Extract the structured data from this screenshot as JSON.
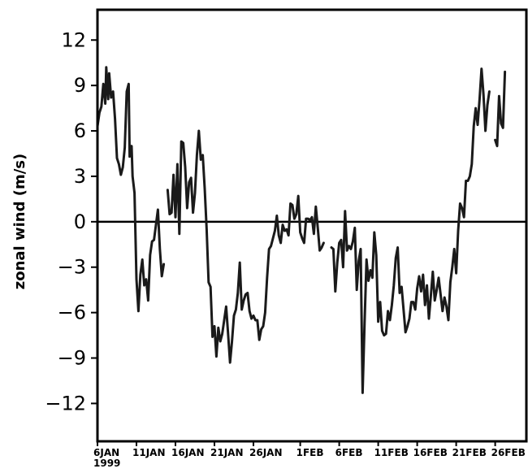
{
  "chart_data": {
    "type": "line",
    "title": "",
    "xlabel": "",
    "ylabel": "zonal wind (m/s)",
    "ylim": [
      -14.5,
      14
    ],
    "yticks": [
      12,
      9,
      6,
      3,
      0,
      -3,
      -6,
      -9,
      -12
    ],
    "ytick_labels": [
      "12",
      "9",
      "6",
      "3",
      "0",
      "−3",
      "−6",
      "−9",
      "−12"
    ],
    "xlim": [
      "1999-01-06",
      "1999-03-02"
    ],
    "xticks": [
      {
        "date": "1999-01-06",
        "label": "6JAN"
      },
      {
        "date": "1999-01-11",
        "label": "11JAN"
      },
      {
        "date": "1999-01-16",
        "label": "16JAN"
      },
      {
        "date": "1999-01-21",
        "label": "21JAN"
      },
      {
        "date": "1999-01-26",
        "label": "26JAN"
      },
      {
        "date": "1999-02-01",
        "label": "1FEB"
      },
      {
        "date": "1999-02-06",
        "label": "6FEB"
      },
      {
        "date": "1999-02-11",
        "label": "11FEB"
      },
      {
        "date": "1999-02-16",
        "label": "16FEB"
      },
      {
        "date": "1999-02-21",
        "label": "21FEB"
      },
      {
        "date": "1999-02-26",
        "label": "26FEB"
      }
    ],
    "year_label": "1999",
    "zero_line": true,
    "grid": false,
    "line_color": "#1a1a1a",
    "series": [
      {
        "segments": [
          [
            [
              "1999-01-06 00:00",
              6.3
            ],
            [
              "1999-01-06 06:00",
              7.2
            ],
            [
              "1999-01-06 12:00",
              7.6
            ],
            [
              "1999-01-06 18:00",
              9.1
            ],
            [
              "1999-01-07 00:00",
              7.8
            ],
            [
              "1999-01-07 03:00",
              10.2
            ],
            [
              "1999-01-07 09:00",
              8.1
            ],
            [
              "1999-01-07 12:00",
              9.8
            ],
            [
              "1999-01-07 18:00",
              8.2
            ],
            [
              "1999-01-08 00:00",
              8.6
            ],
            [
              "1999-01-08 06:00",
              6.8
            ],
            [
              "1999-01-08 12:00",
              4.2
            ],
            [
              "1999-01-08 18:00",
              3.8
            ],
            [
              "1999-01-09 00:00",
              3.1
            ],
            [
              "1999-01-09 06:00",
              3.6
            ],
            [
              "1999-01-09 12:00",
              4.9
            ],
            [
              "1999-01-09 18:00",
              8.6
            ],
            [
              "1999-01-10 00:00",
              9.1
            ],
            [
              "1999-01-10 03:00",
              4.3
            ],
            [
              "1999-01-10 09:00",
              5.0
            ],
            [
              "1999-01-10 12:00",
              3.0
            ],
            [
              "1999-01-10 18:00",
              1.9
            ],
            [
              "1999-01-11 00:00",
              -3.8
            ],
            [
              "1999-01-11 06:00",
              -5.9
            ],
            [
              "1999-01-11 12:00",
              -3.5
            ],
            [
              "1999-01-11 18:00",
              -2.5
            ],
            [
              "1999-01-12 00:00",
              -4.2
            ],
            [
              "1999-01-12 06:00",
              -3.8
            ],
            [
              "1999-01-12 12:00",
              -5.2
            ],
            [
              "1999-01-12 18:00",
              -2.2
            ],
            [
              "1999-01-13 00:00",
              -1.3
            ],
            [
              "1999-01-13 06:00",
              -1.2
            ],
            [
              "1999-01-13 12:00",
              -0.2
            ],
            [
              "1999-01-13 18:00",
              0.8
            ],
            [
              "1999-01-14 00:00",
              -1.8
            ],
            [
              "1999-01-14 06:00",
              -3.6
            ],
            [
              "1999-01-14 12:00",
              -2.8
            ]
          ],
          [
            [
              "1999-01-15 00:00",
              2.1
            ],
            [
              "1999-01-15 06:00",
              0.5
            ],
            [
              "1999-01-15 12:00",
              0.6
            ],
            [
              "1999-01-15 18:00",
              3.1
            ],
            [
              "1999-01-16 00:00",
              0.3
            ],
            [
              "1999-01-16 06:00",
              3.8
            ],
            [
              "1999-01-16 12:00",
              -0.8
            ],
            [
              "1999-01-16 18:00",
              5.3
            ],
            [
              "1999-01-17 00:00",
              5.2
            ],
            [
              "1999-01-17 06:00",
              3.6
            ],
            [
              "1999-01-17 12:00",
              0.9
            ],
            [
              "1999-01-17 18:00",
              2.6
            ],
            [
              "1999-01-18 00:00",
              2.9
            ],
            [
              "1999-01-18 06:00",
              0.6
            ],
            [
              "1999-01-18 12:00",
              1.9
            ],
            [
              "1999-01-18 18:00",
              4.4
            ],
            [
              "1999-01-19 00:00",
              6.0
            ],
            [
              "1999-01-19 06:00",
              4.1
            ],
            [
              "1999-01-19 12:00",
              4.4
            ],
            [
              "1999-01-19 18:00",
              2.2
            ],
            [
              "1999-01-20 00:00",
              -0.5
            ],
            [
              "1999-01-20 06:00",
              -4.0
            ],
            [
              "1999-01-20 12:00",
              -4.3
            ],
            [
              "1999-01-20 18:00",
              -7.6
            ],
            [
              "1999-01-21 00:00",
              -6.9
            ],
            [
              "1999-01-21 06:00",
              -8.9
            ],
            [
              "1999-01-21 12:00",
              -7.0
            ],
            [
              "1999-01-21 18:00",
              -7.9
            ],
            [
              "1999-01-22 00:00",
              -7.4
            ],
            [
              "1999-01-22 06:00",
              -6.5
            ],
            [
              "1999-01-22 12:00",
              -5.6
            ],
            [
              "1999-01-22 18:00",
              -7.4
            ],
            [
              "1999-01-23 00:00",
              -9.3
            ],
            [
              "1999-01-23 06:00",
              -7.9
            ],
            [
              "1999-01-23 12:00",
              -6.2
            ],
            [
              "1999-01-23 18:00",
              -5.8
            ],
            [
              "1999-01-24 00:00",
              -4.7
            ],
            [
              "1999-01-24 06:00",
              -2.7
            ],
            [
              "1999-01-24 12:00",
              -5.8
            ],
            [
              "1999-01-24 18:00",
              -5.2
            ],
            [
              "1999-01-25 00:00",
              -4.8
            ],
            [
              "1999-01-25 06:00",
              -4.7
            ],
            [
              "1999-01-25 12:00",
              -5.9
            ],
            [
              "1999-01-25 18:00",
              -6.4
            ],
            [
              "1999-01-26 00:00",
              -6.2
            ],
            [
              "1999-01-26 06:00",
              -6.5
            ],
            [
              "1999-01-26 12:00",
              -6.5
            ],
            [
              "1999-01-26 18:00",
              -7.8
            ],
            [
              "1999-01-27 00:00",
              -7.1
            ],
            [
              "1999-01-27 06:00",
              -6.9
            ],
            [
              "1999-01-27 12:00",
              -6.0
            ],
            [
              "1999-01-27 18:00",
              -3.7
            ],
            [
              "1999-01-28 00:00",
              -1.8
            ],
            [
              "1999-01-28 06:00",
              -1.6
            ],
            [
              "1999-01-28 12:00",
              -1.1
            ],
            [
              "1999-01-28 18:00",
              -0.6
            ],
            [
              "1999-01-29 00:00",
              0.4
            ],
            [
              "1999-01-29 06:00",
              -0.9
            ],
            [
              "1999-01-29 12:00",
              -1.4
            ],
            [
              "1999-01-29 18:00",
              -0.2
            ],
            [
              "1999-01-30 00:00",
              -0.6
            ],
            [
              "1999-01-30 06:00",
              -0.5
            ],
            [
              "1999-01-30 12:00",
              -0.9
            ],
            [
              "1999-01-30 18:00",
              1.2
            ],
            [
              "1999-01-31 00:00",
              1.1
            ],
            [
              "1999-01-31 06:00",
              0.2
            ],
            [
              "1999-01-31 12:00",
              0.5
            ],
            [
              "1999-01-31 18:00",
              1.7
            ],
            [
              "1999-02-01 00:00",
              -0.7
            ],
            [
              "1999-02-01 06:00",
              -1.1
            ],
            [
              "1999-02-01 12:00",
              -1.4
            ],
            [
              "1999-02-01 18:00",
              0.2
            ],
            [
              "1999-02-02 00:00",
              0.2
            ],
            [
              "1999-02-02 06:00",
              0.1
            ],
            [
              "1999-02-02 12:00",
              0.3
            ],
            [
              "1999-02-02 18:00",
              -0.8
            ],
            [
              "1999-02-03 00:00",
              1.0
            ],
            [
              "1999-02-03 06:00",
              -0.4
            ],
            [
              "1999-02-03 12:00",
              -1.9
            ],
            [
              "1999-02-03 18:00",
              -1.7
            ],
            [
              "1999-02-04 00:00",
              -1.4
            ]
          ],
          [
            [
              "1999-02-05 00:00",
              -1.7
            ],
            [
              "1999-02-05 06:00",
              -1.8
            ],
            [
              "1999-02-05 12:00",
              -4.6
            ],
            [
              "1999-02-05 18:00",
              -2.7
            ],
            [
              "1999-02-06 00:00",
              -1.4
            ],
            [
              "1999-02-06 06:00",
              -1.2
            ],
            [
              "1999-02-06 12:00",
              -3.0
            ],
            [
              "1999-02-06 18:00",
              0.7
            ],
            [
              "1999-02-07 00:00",
              -1.9
            ],
            [
              "1999-02-07 06:00",
              -1.6
            ],
            [
              "1999-02-07 12:00",
              -1.8
            ],
            [
              "1999-02-07 18:00",
              -1.3
            ],
            [
              "1999-02-08 00:00",
              -0.4
            ],
            [
              "1999-02-08 06:00",
              -4.5
            ],
            [
              "1999-02-08 12:00",
              -2.6
            ],
            [
              "1999-02-08 18:00",
              -1.8
            ],
            [
              "1999-02-09 00:00",
              -11.3
            ],
            [
              "1999-02-09 06:00",
              -6.7
            ],
            [
              "1999-02-09 12:00",
              -2.5
            ],
            [
              "1999-02-09 18:00",
              -3.9
            ],
            [
              "1999-02-10 00:00",
              -3.2
            ],
            [
              "1999-02-10 06:00",
              -3.7
            ],
            [
              "1999-02-10 12:00",
              -0.7
            ],
            [
              "1999-02-10 18:00",
              -2.2
            ],
            [
              "1999-02-11 00:00",
              -6.6
            ],
            [
              "1999-02-11 06:00",
              -5.3
            ],
            [
              "1999-02-11 12:00",
              -7.2
            ],
            [
              "1999-02-11 18:00",
              -7.5
            ],
            [
              "1999-02-12 00:00",
              -7.4
            ],
            [
              "1999-02-12 06:00",
              -5.9
            ],
            [
              "1999-02-12 12:00",
              -6.5
            ],
            [
              "1999-02-12 18:00",
              -5.5
            ],
            [
              "1999-02-13 00:00",
              -4.2
            ],
            [
              "1999-02-13 06:00",
              -2.4
            ],
            [
              "1999-02-13 12:00",
              -1.7
            ],
            [
              "1999-02-13 18:00",
              -4.7
            ],
            [
              "1999-02-14 00:00",
              -4.3
            ],
            [
              "1999-02-14 06:00",
              -5.8
            ],
            [
              "1999-02-14 12:00",
              -7.3
            ],
            [
              "1999-02-14 18:00",
              -6.9
            ],
            [
              "1999-02-15 00:00",
              -6.4
            ],
            [
              "1999-02-15 06:00",
              -5.3
            ],
            [
              "1999-02-15 12:00",
              -5.3
            ],
            [
              "1999-02-15 18:00",
              -5.8
            ],
            [
              "1999-02-16 00:00",
              -4.4
            ],
            [
              "1999-02-16 06:00",
              -3.6
            ],
            [
              "1999-02-16 12:00",
              -4.6
            ],
            [
              "1999-02-16 18:00",
              -3.5
            ],
            [
              "1999-02-17 00:00",
              -5.5
            ],
            [
              "1999-02-17 06:00",
              -4.2
            ],
            [
              "1999-02-17 12:00",
              -6.4
            ],
            [
              "1999-02-17 18:00",
              -4.9
            ],
            [
              "1999-02-18 00:00",
              -3.3
            ],
            [
              "1999-02-18 06:00",
              -5.2
            ],
            [
              "1999-02-18 12:00",
              -4.5
            ],
            [
              "1999-02-18 18:00",
              -3.7
            ],
            [
              "1999-02-19 00:00",
              -4.8
            ],
            [
              "1999-02-19 06:00",
              -5.9
            ],
            [
              "1999-02-19 12:00",
              -5.0
            ],
            [
              "1999-02-19 18:00",
              -5.6
            ],
            [
              "1999-02-20 00:00",
              -6.5
            ],
            [
              "1999-02-20 06:00",
              -4.0
            ],
            [
              "1999-02-20 12:00",
              -3.0
            ],
            [
              "1999-02-20 18:00",
              -1.8
            ],
            [
              "1999-02-21 00:00",
              -3.4
            ],
            [
              "1999-02-21 06:00",
              -0.6
            ],
            [
              "1999-02-21 12:00",
              1.2
            ],
            [
              "1999-02-21 18:00",
              0.9
            ],
            [
              "1999-02-22 00:00",
              0.3
            ],
            [
              "1999-02-22 06:00",
              2.7
            ],
            [
              "1999-02-22 12:00",
              2.7
            ],
            [
              "1999-02-22 18:00",
              3.0
            ],
            [
              "1999-02-23 00:00",
              3.8
            ],
            [
              "1999-02-23 06:00",
              6.3
            ],
            [
              "1999-02-23 12:00",
              7.5
            ],
            [
              "1999-02-23 18:00",
              6.4
            ],
            [
              "1999-02-24 00:00",
              8.1
            ],
            [
              "1999-02-24 06:00",
              10.1
            ],
            [
              "1999-02-24 12:00",
              8.4
            ],
            [
              "1999-02-24 18:00",
              6.0
            ],
            [
              "1999-02-25 00:00",
              7.7
            ],
            [
              "1999-02-25 06:00",
              8.6
            ]
          ],
          [
            [
              "1999-02-26 00:00",
              5.4
            ],
            [
              "1999-02-26 06:00",
              5.0
            ],
            [
              "1999-02-26 12:00",
              8.3
            ],
            [
              "1999-02-26 18:00",
              6.5
            ],
            [
              "1999-02-27 00:00",
              6.2
            ],
            [
              "1999-02-27 06:00",
              9.9
            ]
          ]
        ]
      }
    ]
  }
}
